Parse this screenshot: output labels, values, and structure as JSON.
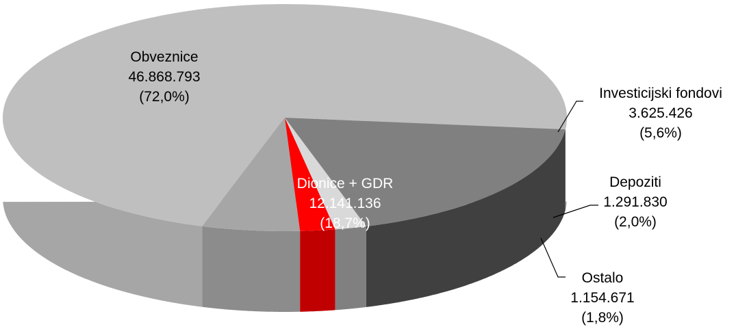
{
  "chart_data": {
    "type": "pie",
    "title": "",
    "slices": [
      {
        "name": "Obveznice",
        "value": "46.868.793",
        "percent": "(72,0%)",
        "pct": 72.0,
        "color": "#bfbfbf",
        "side": "#a6a6a6",
        "label_color": "#000000"
      },
      {
        "name": "Investicijski fondovi",
        "value": "3.625.426",
        "percent": "(5,6%)",
        "pct": 5.6,
        "color": "#a6a6a6",
        "side": "#8c8c8c",
        "label_color": "#000000"
      },
      {
        "name": "Depoziti",
        "value": "1.291.830",
        "percent": "(2,0%)",
        "pct": 2.0,
        "color": "#ff0000",
        "side": "#c00000",
        "label_color": "#000000"
      },
      {
        "name": "Ostalo",
        "value": "1.154.671",
        "percent": "(1,8%)",
        "pct": 1.8,
        "color": "#d9d9d9",
        "side": "#808080",
        "label_color": "#000000"
      },
      {
        "name": "Dionice + GDR",
        "value": "12.141.136",
        "percent": "(18,7%)",
        "pct": 18.7,
        "color": "#808080",
        "side": "#404040",
        "label_color": "#ffffff"
      }
    ]
  }
}
